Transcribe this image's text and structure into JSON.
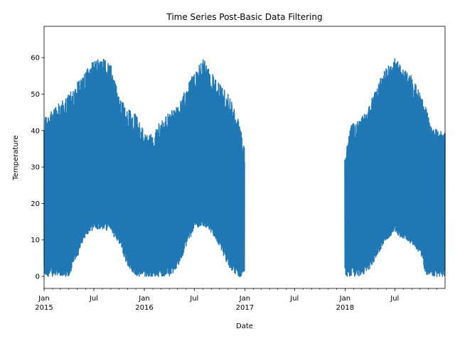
{
  "chart_data": {
    "type": "line",
    "title": "Time Series Post-Basic Data Filtering",
    "xlabel": "Date",
    "ylabel": "Temperature",
    "xlim": [
      "2015-01-01",
      "2018-12-31"
    ],
    "ylim": [
      -3.3,
      68.6
    ],
    "grid": false,
    "legend": "none",
    "color": "#1f77b4",
    "yticks": [
      0,
      10,
      20,
      30,
      40,
      50,
      60
    ],
    "xticks_major": [
      {
        "date": "2015-01-01",
        "label": "Jan",
        "year": "2015"
      },
      {
        "date": "2015-07-01",
        "label": "Jul",
        "year": ""
      },
      {
        "date": "2016-01-01",
        "label": "Jan",
        "year": "2016"
      },
      {
        "date": "2016-07-01",
        "label": "Jul",
        "year": ""
      },
      {
        "date": "2017-01-01",
        "label": "Jan",
        "year": "2017"
      },
      {
        "date": "2017-07-01",
        "label": "Jul",
        "year": ""
      },
      {
        "date": "2018-01-01",
        "label": "Jan",
        "year": "2018"
      },
      {
        "date": "2018-07-01",
        "label": "Jul",
        "year": ""
      }
    ],
    "series": [
      {
        "segments": [
          {
            "start": "2015-01-01",
            "end": "2016-12-31",
            "x": [
              "2015-01-01",
              "2015-02-01",
              "2015-03-01",
              "2015-04-01",
              "2015-05-01",
              "2015-06-01",
              "2015-07-01",
              "2015-08-01",
              "2015-09-01",
              "2015-10-01",
              "2015-11-01",
              "2015-12-01",
              "2016-01-01",
              "2016-02-01",
              "2016-03-01",
              "2016-04-01",
              "2016-05-01",
              "2016-06-01",
              "2016-07-01",
              "2016-08-01",
              "2016-09-01",
              "2016-10-01",
              "2016-11-01",
              "2016-12-01",
              "2016-12-31"
            ],
            "upper": [
              44,
              46,
              48,
              50,
              53,
              57,
              59,
              60,
              58,
              50,
              46,
              45,
              40,
              39,
              43,
              45,
              47,
              52,
              56,
              60,
              56,
              53,
              50,
              45,
              36
            ],
            "lower": [
              0,
              0,
              0,
              0,
              5,
              11,
              13,
              13,
              12,
              9,
              3,
              0,
              0,
              0,
              0,
              0,
              2,
              8,
              13,
              14,
              12,
              8,
              3,
              0,
              0
            ]
          },
          {
            "start": "2017-12-31",
            "end": "2018-12-31",
            "x": [
              "2017-12-31",
              "2018-01-15",
              "2018-02-01",
              "2018-03-01",
              "2018-04-01",
              "2018-05-01",
              "2018-06-01",
              "2018-07-01",
              "2018-08-01",
              "2018-09-01",
              "2018-10-01",
              "2018-10-25",
              "2018-11-10",
              "2018-11-20",
              "2018-12-01",
              "2018-12-31"
            ],
            "upper": [
              34,
              41,
              42,
              44,
              48,
              53,
              58,
              60,
              57,
              55,
              50,
              46,
              42,
              40,
              41,
              40
            ],
            "lower": [
              0,
              0,
              0,
              0,
              2,
              6,
              10,
              12,
              10,
              9,
              6,
              0,
              0,
              0,
              0,
              0
            ]
          }
        ]
      }
    ]
  }
}
